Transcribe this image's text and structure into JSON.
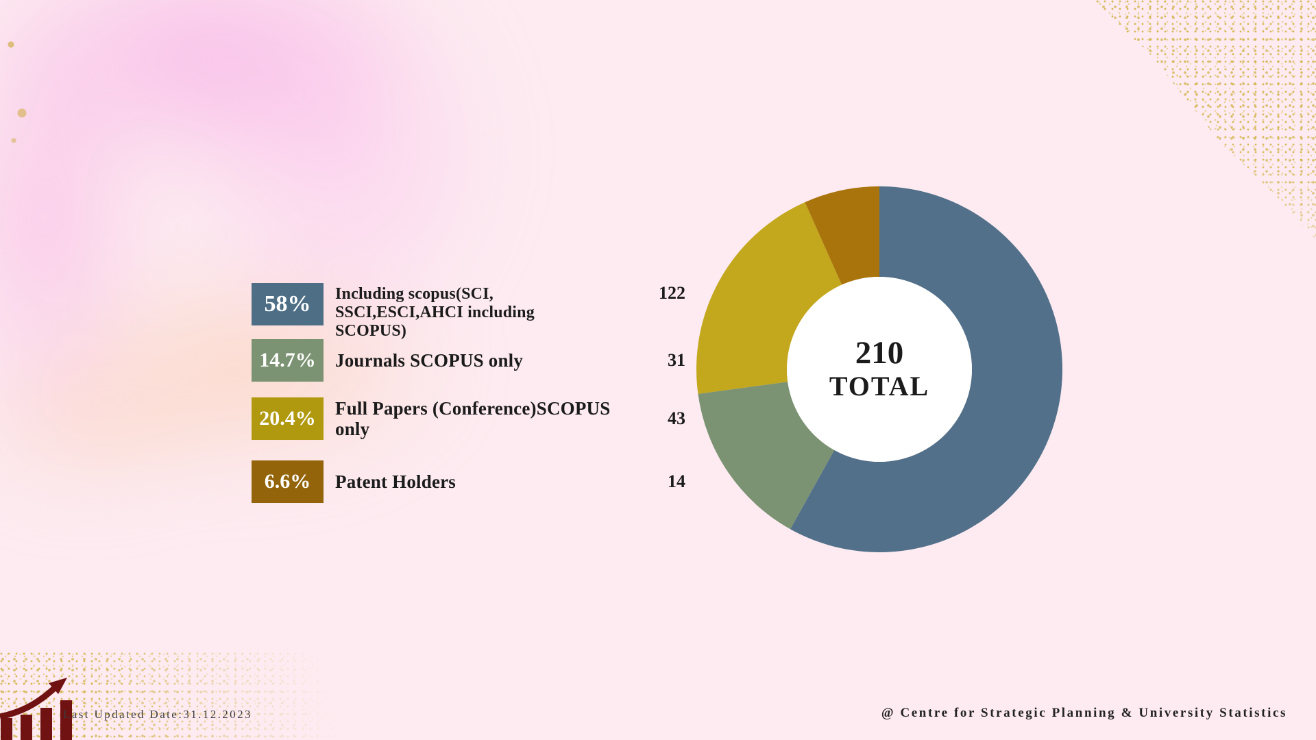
{
  "chart_data": {
    "type": "pie",
    "subtype": "donut",
    "title": "",
    "categories": [
      "Including scopus(SCI, SSCI,ESCI,AHCI including SCOPUS)",
      "Journals SCOPUS only",
      "Full Papers (Conference)SCOPUS only",
      "Patent Holders"
    ],
    "values": [
      122,
      31,
      43,
      14
    ],
    "percent_labels": [
      "58%",
      "14.7%",
      "20.4%",
      "6.6%"
    ],
    "colors": [
      "#527089",
      "#7b9372",
      "#c3a71d",
      "#a9740c"
    ],
    "total": 210,
    "center": {
      "value": "210",
      "label": "TOTAL"
    },
    "start_angle_deg": 0,
    "direction": "clockwise",
    "legend_position": "left"
  },
  "legend": {
    "rows": [
      {
        "percent": "58%",
        "label": "Including scopus(SCI,\nSSCI,ESCI,AHCI including\nSCOPUS)",
        "value": "122",
        "color": "#4d6e85"
      },
      {
        "percent": "14.7%",
        "label": "Journals SCOPUS only",
        "value": "31",
        "color": "#7b9372"
      },
      {
        "percent": "20.4%",
        "label": "Full Papers (Conference)SCOPUS only",
        "value": "43",
        "color": "#b1990f"
      },
      {
        "percent": "6.6%",
        "label": "Patent Holders",
        "value": "14",
        "color": "#936409"
      }
    ]
  },
  "footer": {
    "last_updated": "Last Updated Date:31.12.2023",
    "credit": "@ Centre for Strategic Planning & University Statistics"
  },
  "icons": {
    "bottom_left": "growth-chart-icon"
  },
  "colors": {
    "background": "#fdebf1",
    "icon_maroon": "#701112",
    "gold_speckle": "#d1b446",
    "center_circle": "#ffffff",
    "text": "#1b1b1b"
  }
}
